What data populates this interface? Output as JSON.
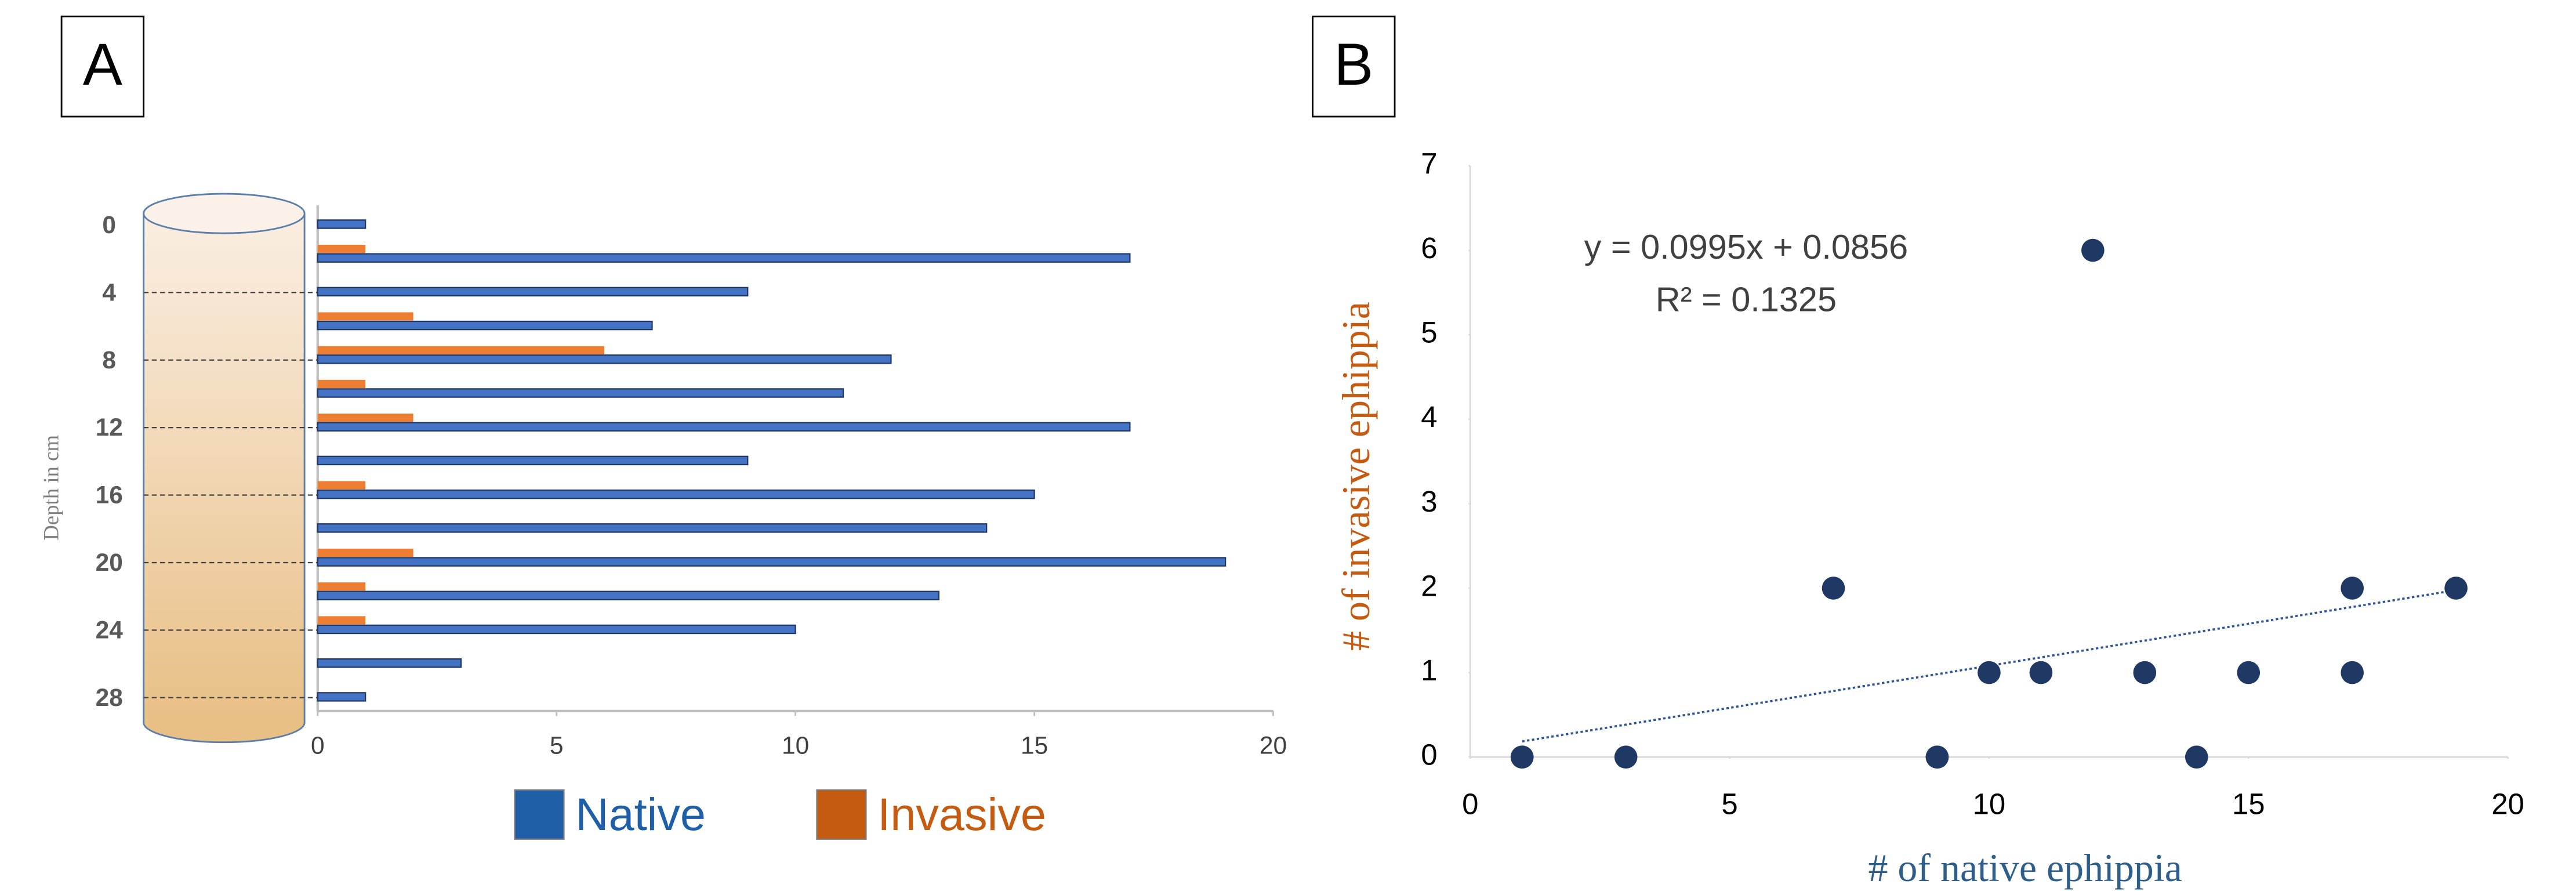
{
  "chart_data": [
    {
      "type": "bar",
      "orientation": "horizontal",
      "panel_label": "A",
      "y_label": "Depth in cm",
      "categories": [
        "0",
        null,
        "4",
        null,
        "8",
        null,
        "12",
        null,
        "16",
        null,
        "20",
        null,
        "24",
        null,
        "28"
      ],
      "series": [
        {
          "name": "Native",
          "color": "#4472c4",
          "legend_color": "#1f5fa8",
          "values": [
            1,
            17,
            9,
            7,
            12,
            11,
            17,
            9,
            15,
            14,
            19,
            13,
            10,
            3,
            1
          ]
        },
        {
          "name": "Invasive",
          "color": "#ed7d31",
          "legend_color": "#c55a11",
          "values": [
            0,
            1,
            0,
            2,
            6,
            1,
            2,
            0,
            1,
            0,
            2,
            1,
            1,
            0,
            0
          ]
        }
      ],
      "xlim": [
        0,
        20
      ],
      "xticks": [
        0,
        5,
        10,
        15,
        20
      ]
    },
    {
      "type": "scatter",
      "panel_label": "B",
      "x_label": "# of native ephippia",
      "y_label": "# of invasive ephippia",
      "x": [
        1,
        17,
        9,
        7,
        12,
        11,
        17,
        9,
        15,
        14,
        19,
        13,
        10,
        3,
        1
      ],
      "series": [
        {
          "color": "#203864",
          "values": [
            0,
            1,
            0,
            2,
            6,
            1,
            2,
            0,
            1,
            0,
            2,
            1,
            1,
            0,
            0
          ]
        }
      ],
      "trendline": {
        "slope": 0.0995,
        "intercept": 0.0856,
        "equation": "y = 0.0995x + 0.0856",
        "r2": 0.1325,
        "r2_label": "R² = 0.1325",
        "color": "#2f5597"
      },
      "xlim": [
        0,
        20
      ],
      "xticks": [
        0,
        5,
        10,
        15,
        20
      ],
      "ylim": [
        0,
        7
      ],
      "yticks": [
        0,
        1,
        2,
        3,
        4,
        5,
        6,
        7
      ]
    }
  ]
}
